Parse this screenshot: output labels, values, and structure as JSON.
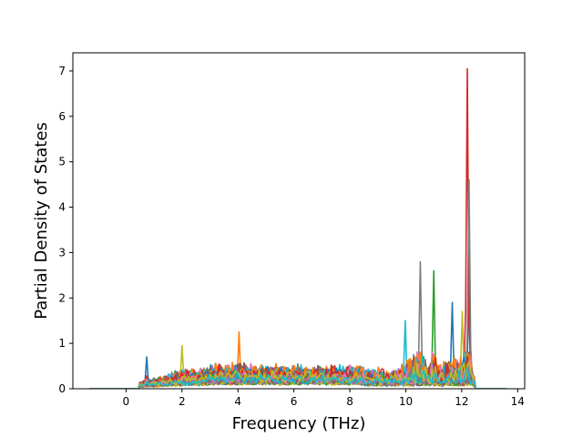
{
  "chart_data": {
    "type": "line",
    "title": "",
    "xlabel": "Frequency (THz)",
    "ylabel": "Partial Density of States",
    "xlim": [
      -1.9,
      14.25
    ],
    "ylim": [
      0,
      7.4
    ],
    "xticks": [
      0,
      2,
      4,
      6,
      8,
      10,
      12,
      14
    ],
    "yticks": [
      0,
      1,
      2,
      3,
      4,
      5,
      6,
      7
    ],
    "grid": false,
    "legend": "none",
    "x_start": -1.3,
    "x_end": 13.6,
    "series_count": 60,
    "palette": [
      "#1f77b4",
      "#ff7f0e",
      "#2ca02c",
      "#d62728",
      "#9467bd",
      "#8c564b",
      "#e377c2",
      "#7f7f7f",
      "#bcbd22",
      "#17becf"
    ],
    "envelope": [
      {
        "x": -1.3,
        "y": 0
      },
      {
        "x": 0.3,
        "y": 0
      },
      {
        "x": 0.6,
        "y": 0.15
      },
      {
        "x": 0.75,
        "y": 0.7
      },
      {
        "x": 0.9,
        "y": 0.25
      },
      {
        "x": 1.4,
        "y": 0.55
      },
      {
        "x": 2.0,
        "y": 0.95
      },
      {
        "x": 2.5,
        "y": 0.6
      },
      {
        "x": 3.2,
        "y": 1.08
      },
      {
        "x": 3.6,
        "y": 0.85
      },
      {
        "x": 4.05,
        "y": 1.25
      },
      {
        "x": 4.5,
        "y": 0.9
      },
      {
        "x": 5.0,
        "y": 0.95
      },
      {
        "x": 6.0,
        "y": 0.85
      },
      {
        "x": 7.0,
        "y": 0.75
      },
      {
        "x": 8.0,
        "y": 0.7
      },
      {
        "x": 9.0,
        "y": 1.0
      },
      {
        "x": 9.5,
        "y": 0.7
      },
      {
        "x": 10.0,
        "y": 1.5
      },
      {
        "x": 10.5,
        "y": 2.8
      },
      {
        "x": 10.8,
        "y": 1.2
      },
      {
        "x": 11.0,
        "y": 2.6
      },
      {
        "x": 11.2,
        "y": 1.3
      },
      {
        "x": 11.7,
        "y": 1.9
      },
      {
        "x": 12.05,
        "y": 1.7
      },
      {
        "x": 12.2,
        "y": 7.05
      },
      {
        "x": 12.28,
        "y": 4.6
      },
      {
        "x": 12.4,
        "y": 0.3
      },
      {
        "x": 12.6,
        "y": 0
      },
      {
        "x": 13.6,
        "y": 0
      }
    ],
    "peaks": [
      {
        "x": 0.75,
        "y": 0.7,
        "series": 0
      },
      {
        "x": 2.0,
        "y": 0.95,
        "series": 8
      },
      {
        "x": 4.05,
        "y": 1.25,
        "series": 1
      },
      {
        "x": 10.0,
        "y": 1.5,
        "series": 9
      },
      {
        "x": 10.5,
        "y": 2.8,
        "series": 7
      },
      {
        "x": 11.0,
        "y": 2.6,
        "series": 2
      },
      {
        "x": 11.65,
        "y": 1.9,
        "series": 0
      },
      {
        "x": 12.0,
        "y": 1.7,
        "series": 8
      },
      {
        "x": 12.2,
        "y": 7.05,
        "series": 3
      },
      {
        "x": 12.28,
        "y": 4.6,
        "series": 7
      },
      {
        "x": 12.25,
        "y": 2.55,
        "series": 0
      }
    ]
  }
}
